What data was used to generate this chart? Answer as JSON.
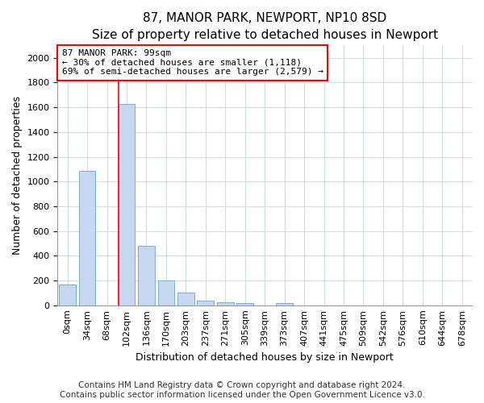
{
  "title": "87, MANOR PARK, NEWPORT, NP10 8SD",
  "subtitle": "Size of property relative to detached houses in Newport",
  "xlabel": "Distribution of detached houses by size in Newport",
  "ylabel": "Number of detached properties",
  "categories": [
    "0sqm",
    "34sqm",
    "68sqm",
    "102sqm",
    "136sqm",
    "170sqm",
    "203sqm",
    "237sqm",
    "271sqm",
    "305sqm",
    "339sqm",
    "373sqm",
    "407sqm",
    "441sqm",
    "475sqm",
    "509sqm",
    "542sqm",
    "576sqm",
    "610sqm",
    "644sqm",
    "678sqm"
  ],
  "bar_values": [
    165,
    1085,
    0,
    1630,
    480,
    200,
    100,
    40,
    25,
    20,
    0,
    20,
    0,
    0,
    0,
    0,
    0,
    0,
    0,
    0,
    0
  ],
  "bar_color": "#c5d8f0",
  "bar_edge_color": "#7aadd4",
  "red_line_index": 3,
  "marker_label": "87 MANOR PARK: 99sqm",
  "annotation_line1": "← 30% of detached houses are smaller (1,118)",
  "annotation_line2": "69% of semi-detached houses are larger (2,579) →",
  "ylim": [
    0,
    2100
  ],
  "yticks": [
    0,
    200,
    400,
    600,
    800,
    1000,
    1200,
    1400,
    1600,
    1800,
    2000
  ],
  "footer_line1": "Contains HM Land Registry data © Crown copyright and database right 2024.",
  "footer_line2": "Contains public sector information licensed under the Open Government Licence v3.0.",
  "bg_color": "#ffffff",
  "plot_bg_color": "#ffffff",
  "grid_color": "#d0dce8",
  "title_fontsize": 11,
  "xlabel_fontsize": 9,
  "ylabel_fontsize": 9,
  "tick_fontsize": 8,
  "annot_fontsize": 8,
  "footer_fontsize": 7.5
}
